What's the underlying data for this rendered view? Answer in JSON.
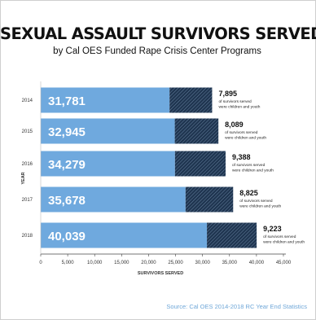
{
  "title": "SEXUAL ASSAULT SURVIVORS SERVED",
  "subtitle": "by Cal OES Funded Rape Crisis Center Programs",
  "source": "Source: Cal OES 2014-2018 RC Year End Statistics",
  "colors": {
    "bar": "#6fa9de",
    "hatch": "#1f3550",
    "axis": "#444444",
    "source": "#6fa7d8"
  },
  "chart_data": {
    "type": "bar",
    "orientation": "horizontal",
    "stacked": true,
    "xlabel": "SURVIVORS SERVED",
    "ylabel": "YEAR",
    "xlim": [
      0,
      45000
    ],
    "xticks": [
      "0",
      "5,000",
      "10,000",
      "15,000",
      "20,000",
      "25,000",
      "30,000",
      "35,000",
      "40,000",
      "45,000"
    ],
    "categories": [
      "2014",
      "2015",
      "2016",
      "2017",
      "2018"
    ],
    "totals": [
      31781,
      32945,
      34279,
      35678,
      40039
    ],
    "total_labels": [
      "31,781",
      "32,945",
      "34,279",
      "35,678",
      "40,039"
    ],
    "children": [
      7895,
      8089,
      9388,
      8825,
      9223
    ],
    "children_labels": [
      "7,895",
      "8,089",
      "9,388",
      "8,825",
      "9,223"
    ],
    "annotations": [
      [
        "of survivors served",
        "were children and youth"
      ],
      [
        "of survivors served",
        "were children and youth"
      ],
      [
        "of survivors served",
        "were children and youth"
      ],
      [
        "of survivors served",
        "were children and youth"
      ],
      [
        "of survivors served",
        "were children and youth"
      ]
    ]
  }
}
